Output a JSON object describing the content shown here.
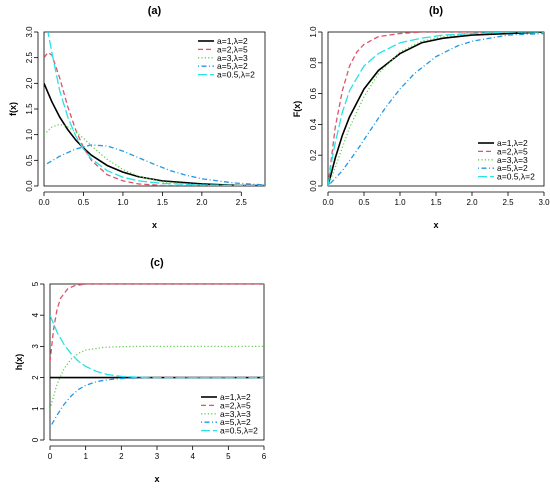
{
  "chart_data": [
    {
      "type": "line",
      "panel": "a",
      "title": "(a)",
      "xlabel": "x",
      "ylabel": "f(x)",
      "xlim": [
        0,
        2.8
      ],
      "ylim": [
        0,
        3.0
      ],
      "xticks": [
        0.0,
        0.5,
        1.0,
        1.5,
        2.0,
        2.5
      ],
      "xtick_labels": [
        "0.0",
        "0.5",
        "1.0",
        "1.5",
        "2.0",
        "2.5"
      ],
      "yticks": [
        0.0,
        0.5,
        1.0,
        1.5,
        2.0,
        2.5,
        3.0
      ],
      "ytick_labels": [
        "0.0",
        "0.5",
        "1.0",
        "1.5",
        "2.0",
        "2.5",
        "3.0"
      ],
      "legend_position": "top-right",
      "series": [
        {
          "name": "a=1,λ=2",
          "color": "#000000",
          "dash": "solid",
          "x": [
            0.0,
            0.1,
            0.2,
            0.3,
            0.4,
            0.5,
            0.6,
            0.8,
            1.0,
            1.2,
            1.5,
            2.0,
            2.5,
            2.8
          ],
          "y": [
            2.0,
            1.64,
            1.34,
            1.1,
            0.9,
            0.74,
            0.6,
            0.4,
            0.27,
            0.18,
            0.1,
            0.04,
            0.01,
            0.01
          ]
        },
        {
          "name": "a=2,λ=5",
          "color": "#df536b",
          "dash": "dashed",
          "x": [
            0.0,
            0.05,
            0.1,
            0.2,
            0.3,
            0.4,
            0.5,
            0.6,
            0.8,
            1.0,
            1.2,
            1.5,
            2.0,
            2.8
          ],
          "y": [
            2.5,
            2.6,
            2.55,
            2.1,
            1.55,
            1.1,
            0.75,
            0.5,
            0.22,
            0.1,
            0.04,
            0.01,
            0.0,
            0.0
          ]
        },
        {
          "name": "a=3,λ=3",
          "color": "#61d04f",
          "dash": "dotted",
          "x": [
            0.0,
            0.1,
            0.2,
            0.3,
            0.4,
            0.5,
            0.6,
            0.8,
            1.0,
            1.2,
            1.5,
            2.0,
            2.8
          ],
          "y": [
            1.0,
            1.15,
            1.2,
            1.15,
            1.05,
            0.93,
            0.78,
            0.52,
            0.32,
            0.19,
            0.08,
            0.02,
            0.0
          ]
        },
        {
          "name": "a=5,λ=2",
          "color": "#2297e6",
          "dash": "dotdash",
          "x": [
            0.0,
            0.2,
            0.4,
            0.6,
            0.8,
            1.0,
            1.2,
            1.4,
            1.6,
            1.8,
            2.0,
            2.4,
            2.8
          ],
          "y": [
            0.4,
            0.58,
            0.72,
            0.8,
            0.78,
            0.68,
            0.55,
            0.42,
            0.3,
            0.21,
            0.14,
            0.06,
            0.02
          ]
        },
        {
          "name": "a=0.5,λ=2",
          "color": "#28e2e5",
          "dash": "longdash",
          "x": [
            0.0,
            0.05,
            0.1,
            0.2,
            0.3,
            0.4,
            0.5,
            0.6,
            0.8,
            1.0,
            1.2,
            1.5,
            2.0,
            2.5,
            2.8
          ],
          "y": [
            3.3,
            3.0,
            2.6,
            1.85,
            1.35,
            0.98,
            0.72,
            0.53,
            0.3,
            0.17,
            0.1,
            0.05,
            0.02,
            0.01,
            0.0
          ]
        }
      ]
    },
    {
      "type": "line",
      "panel": "b",
      "title": "(b)",
      "xlabel": "x",
      "ylabel": "F(x)",
      "xlim": [
        0,
        3.0
      ],
      "ylim": [
        0,
        1.0
      ],
      "xticks": [
        0.0,
        0.5,
        1.0,
        1.5,
        2.0,
        2.5,
        3.0
      ],
      "xtick_labels": [
        "0.0",
        "0.5",
        "1.0",
        "1.5",
        "2.0",
        "2.5",
        "3.0"
      ],
      "yticks": [
        0.0,
        0.2,
        0.4,
        0.6,
        0.8,
        1.0
      ],
      "ytick_labels": [
        "0.0",
        "0.2",
        "0.4",
        "0.6",
        "0.8",
        "1.0"
      ],
      "legend_position": "bottom-right",
      "series": [
        {
          "name": "a=1,λ=2",
          "color": "#000000",
          "dash": "solid",
          "x": [
            0.0,
            0.1,
            0.2,
            0.3,
            0.5,
            0.7,
            1.0,
            1.3,
            1.6,
            2.0,
            2.5,
            3.0
          ],
          "y": [
            0.0,
            0.18,
            0.33,
            0.45,
            0.63,
            0.75,
            0.86,
            0.93,
            0.96,
            0.98,
            0.99,
            1.0
          ]
        },
        {
          "name": "a=2,λ=5",
          "color": "#df536b",
          "dash": "dashed",
          "x": [
            0.0,
            0.1,
            0.2,
            0.3,
            0.4,
            0.5,
            0.7,
            1.0,
            1.3,
            1.6,
            2.0,
            3.0
          ],
          "y": [
            0.0,
            0.38,
            0.62,
            0.78,
            0.87,
            0.92,
            0.97,
            0.99,
            1.0,
            1.0,
            1.0,
            1.0
          ]
        },
        {
          "name": "a=3,λ=3",
          "color": "#61d04f",
          "dash": "dotted",
          "x": [
            0.0,
            0.1,
            0.2,
            0.3,
            0.5,
            0.7,
            1.0,
            1.3,
            1.6,
            2.0,
            2.5,
            3.0
          ],
          "y": [
            0.0,
            0.12,
            0.25,
            0.38,
            0.58,
            0.73,
            0.87,
            0.94,
            0.97,
            0.99,
            1.0,
            1.0
          ]
        },
        {
          "name": "a=5,λ=2",
          "color": "#2297e6",
          "dash": "dotdash",
          "x": [
            0.0,
            0.2,
            0.4,
            0.6,
            0.8,
            1.0,
            1.2,
            1.5,
            1.8,
            2.0,
            2.5,
            3.0
          ],
          "y": [
            0.0,
            0.1,
            0.23,
            0.37,
            0.51,
            0.63,
            0.73,
            0.84,
            0.91,
            0.94,
            0.98,
            0.99
          ]
        },
        {
          "name": "a=0.5,λ=2",
          "color": "#28e2e5",
          "dash": "longdash",
          "x": [
            0.0,
            0.05,
            0.1,
            0.2,
            0.3,
            0.5,
            0.7,
            1.0,
            1.3,
            1.6,
            2.0,
            2.5,
            3.0
          ],
          "y": [
            0.0,
            0.16,
            0.28,
            0.48,
            0.62,
            0.78,
            0.86,
            0.93,
            0.96,
            0.98,
            0.99,
            1.0,
            1.0
          ]
        }
      ]
    },
    {
      "type": "line",
      "panel": "c",
      "title": "(c)",
      "xlabel": "x",
      "ylabel": "h(x)",
      "xlim": [
        0,
        6
      ],
      "ylim": [
        0,
        5
      ],
      "xticks": [
        0,
        1,
        2,
        3,
        4,
        5,
        6
      ],
      "xtick_labels": [
        "0",
        "1",
        "2",
        "3",
        "4",
        "5",
        "6"
      ],
      "yticks": [
        0,
        1,
        2,
        3,
        4,
        5
      ],
      "ytick_labels": [
        "0",
        "1",
        "2",
        "3",
        "4",
        "5"
      ],
      "legend_position": "bottom-right",
      "series": [
        {
          "name": "a=1,λ=2",
          "color": "#000000",
          "dash": "solid",
          "x": [
            0,
            1,
            2,
            3,
            4,
            5,
            6
          ],
          "y": [
            2,
            2,
            2,
            2,
            2,
            2,
            2
          ]
        },
        {
          "name": "a=2,λ=5",
          "color": "#df536b",
          "dash": "dashed",
          "x": [
            0.0,
            0.1,
            0.2,
            0.3,
            0.5,
            0.7,
            1.0,
            1.5,
            2,
            3,
            4,
            5,
            6
          ],
          "y": [
            2.5,
            3.55,
            4.2,
            4.55,
            4.85,
            4.95,
            5.0,
            5.0,
            5.0,
            5.0,
            5.0,
            5.0,
            5.0
          ]
        },
        {
          "name": "a=3,λ=3",
          "color": "#61d04f",
          "dash": "dotted",
          "x": [
            0.0,
            0.2,
            0.4,
            0.6,
            0.8,
            1.0,
            1.5,
            2.0,
            2.5,
            3,
            4,
            5,
            6
          ],
          "y": [
            1.0,
            1.8,
            2.3,
            2.6,
            2.78,
            2.88,
            2.97,
            2.99,
            3.0,
            3.0,
            3.0,
            3.0,
            3.0
          ]
        },
        {
          "name": "a=5,λ=2",
          "color": "#2297e6",
          "dash": "dotdash",
          "x": [
            0.0,
            0.2,
            0.4,
            0.6,
            0.8,
            1.0,
            1.3,
            1.6,
            2.0,
            2.5,
            3,
            4,
            5,
            6
          ],
          "y": [
            0.4,
            0.8,
            1.15,
            1.42,
            1.62,
            1.75,
            1.87,
            1.93,
            1.97,
            1.99,
            2.0,
            2.0,
            2.0,
            2.0
          ]
        },
        {
          "name": "a=0.5,λ=2",
          "color": "#28e2e5",
          "dash": "longdash",
          "x": [
            0.0,
            0.2,
            0.4,
            0.6,
            0.8,
            1.0,
            1.3,
            1.6,
            2.0,
            2.5,
            3,
            4,
            5,
            6
          ],
          "y": [
            4.0,
            3.45,
            3.05,
            2.75,
            2.52,
            2.36,
            2.2,
            2.1,
            2.04,
            2.01,
            2.0,
            2.0,
            2.0,
            2.0
          ]
        }
      ]
    }
  ]
}
